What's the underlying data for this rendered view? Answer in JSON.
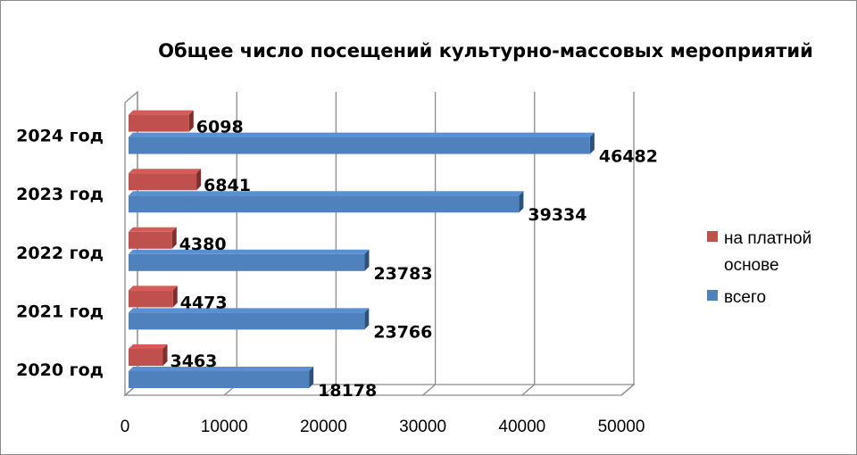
{
  "chart_data": {
    "type": "bar",
    "orientation": "horizontal",
    "title": "Общее число посещений культурно-массовых мероприятий",
    "categories": [
      "2020 год",
      "2021 год",
      "2022 год",
      "2023 год",
      "2024 год"
    ],
    "series": [
      {
        "name": "всего",
        "color": "#4f81bd",
        "values": [
          18178,
          23766,
          23783,
          39334,
          46482
        ]
      },
      {
        "name": "на платной основе",
        "color": "#c0504d",
        "values": [
          3463,
          4473,
          4380,
          6841,
          6098
        ]
      }
    ],
    "xticks": [
      "0",
      "10000",
      "20000",
      "30000",
      "40000",
      "50000"
    ],
    "xlim": [
      0,
      50000
    ],
    "grid": true,
    "legend": {
      "position": "right",
      "items": [
        {
          "label_line1": "на платной",
          "label_line2": "основе",
          "color": "#c0504d"
        },
        {
          "label_line1": "всего",
          "color": "#4f81bd"
        }
      ]
    }
  }
}
